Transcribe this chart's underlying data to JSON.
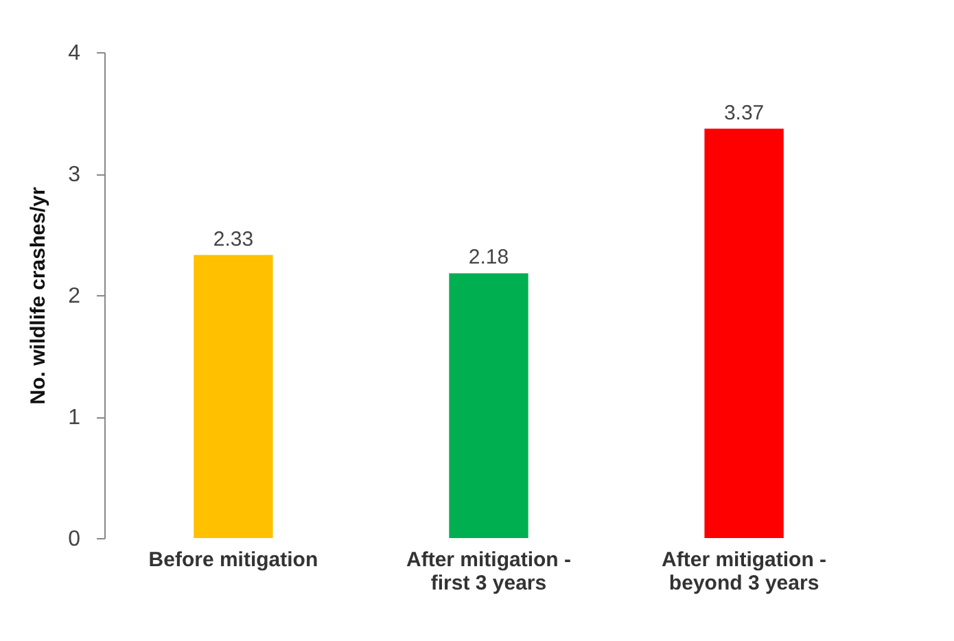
{
  "chart_data": {
    "type": "bar",
    "ylabel": "No. wildlife crashes/yr",
    "categories": [
      "Before mitigation",
      "After mitigation - first 3 years",
      "After mitigation - beyond 3 years"
    ],
    "values": [
      2.33,
      2.18,
      3.37
    ],
    "colors": [
      "#ffc000",
      "#00b050",
      "#ff0000"
    ],
    "ylim": [
      0,
      4
    ],
    "yticks": [
      0,
      1,
      2,
      3,
      4
    ],
    "grid": false,
    "data_labels": true
  }
}
